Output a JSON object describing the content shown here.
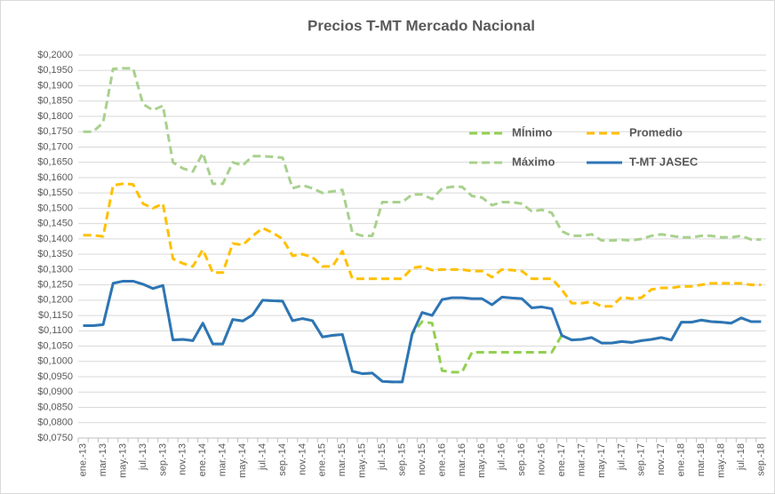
{
  "chart_data": {
    "type": "line",
    "title": "Precios T-MT Mercado Nacional",
    "categories": [
      "ene.-13",
      null,
      "mar.-13",
      null,
      "may.-13",
      null,
      "jul.-13",
      null,
      "sep.-13",
      null,
      "nov.-13",
      null,
      "ene.-14",
      null,
      "mar.-14",
      null,
      "may.-14",
      null,
      "jul.-14",
      null,
      "sep.-14",
      null,
      "nov.-14",
      null,
      "ene.-15",
      null,
      "mar.-15",
      null,
      "may.-15",
      null,
      "jul.-15",
      null,
      "sep.-15",
      null,
      "nov.-15",
      null,
      "ene.-16",
      null,
      "mar.-16",
      null,
      "may.-16",
      null,
      "jul.-16",
      null,
      "sep.-16",
      null,
      "nov.-16",
      null,
      "ene.-17",
      null,
      "mar.-17",
      null,
      "may.-17",
      null,
      "jul.-17",
      null,
      "sep.-17",
      null,
      "nov.-17",
      null,
      "ene.-18",
      null,
      "mar.-18",
      null,
      "may.-18",
      null,
      "jul.-18",
      null,
      "sep.-18"
    ],
    "series": [
      {
        "name": "MÍnimo",
        "color": "#92d050",
        "dashed": true,
        "values": [
          0.1117,
          0.1117,
          0.112,
          0.1255,
          0.1262,
          0.1262,
          0.1252,
          0.1238,
          0.1248,
          0.107,
          0.1072,
          0.1068,
          0.1125,
          0.1057,
          0.1057,
          0.1137,
          0.1132,
          0.1152,
          0.12,
          0.1198,
          0.1197,
          0.1133,
          0.114,
          0.1133,
          0.108,
          0.1085,
          0.1088,
          0.0968,
          0.096,
          0.0962,
          0.0935,
          0.0933,
          0.0933,
          0.109,
          0.113,
          0.1125,
          0.097,
          0.0965,
          0.0965,
          0.103,
          0.103,
          0.103,
          0.103,
          0.103,
          0.103,
          0.103,
          0.103,
          0.103,
          0.1085,
          0.107,
          0.1072,
          0.1078,
          0.106,
          0.106,
          0.1065,
          0.1062,
          0.1068,
          0.1072,
          0.1078,
          0.107,
          0.1128,
          0.1128,
          0.1135,
          0.113,
          0.1128,
          0.1125,
          0.1142,
          0.113,
          0.113
        ]
      },
      {
        "name": "Promedio",
        "color": "#ffc000",
        "dashed": true,
        "values": [
          0.1412,
          0.1412,
          0.1408,
          0.1575,
          0.158,
          0.1578,
          0.1515,
          0.15,
          0.1515,
          0.1335,
          0.132,
          0.131,
          0.1365,
          0.129,
          0.129,
          0.1385,
          0.138,
          0.141,
          0.1435,
          0.142,
          0.14,
          0.1345,
          0.135,
          0.134,
          0.131,
          0.131,
          0.136,
          0.127,
          0.127,
          0.127,
          0.127,
          0.127,
          0.127,
          0.1305,
          0.131,
          0.1298,
          0.13,
          0.13,
          0.13,
          0.1295,
          0.1295,
          0.1275,
          0.13,
          0.1298,
          0.1295,
          0.127,
          0.127,
          0.127,
          0.1235,
          0.119,
          0.119,
          0.1195,
          0.118,
          0.118,
          0.121,
          0.1205,
          0.1208,
          0.1235,
          0.124,
          0.124,
          0.1245,
          0.1245,
          0.125,
          0.1255,
          0.1255,
          0.1255,
          0.1255,
          0.125,
          0.125
        ]
      },
      {
        "name": "Máximo",
        "color": "#a9d18e",
        "dashed": true,
        "values": [
          0.175,
          0.175,
          0.178,
          0.1955,
          0.1957,
          0.1957,
          0.184,
          0.182,
          0.1835,
          0.165,
          0.163,
          0.162,
          0.168,
          0.158,
          0.158,
          0.165,
          0.164,
          0.167,
          0.167,
          0.1668,
          0.1665,
          0.1565,
          0.1575,
          0.1565,
          0.155,
          0.1555,
          0.156,
          0.142,
          0.141,
          0.141,
          0.152,
          0.152,
          0.152,
          0.1545,
          0.1545,
          0.153,
          0.1565,
          0.157,
          0.157,
          0.154,
          0.1535,
          0.151,
          0.152,
          0.152,
          0.1515,
          0.149,
          0.1495,
          0.1485,
          0.1425,
          0.141,
          0.141,
          0.1415,
          0.1395,
          0.1395,
          0.1397,
          0.1395,
          0.14,
          0.141,
          0.1415,
          0.141,
          0.1405,
          0.1405,
          0.141,
          0.141,
          0.1405,
          0.1405,
          0.141,
          0.1398,
          0.1398
        ]
      },
      {
        "name": "T-MT JASEC",
        "color": "#2e75b6",
        "dashed": false,
        "values": [
          0.1117,
          0.1117,
          0.112,
          0.1255,
          0.1262,
          0.1262,
          0.1252,
          0.1238,
          0.1248,
          0.107,
          0.1072,
          0.1068,
          0.1125,
          0.1057,
          0.1057,
          0.1137,
          0.1132,
          0.1152,
          0.12,
          0.1198,
          0.1197,
          0.1133,
          0.114,
          0.1133,
          0.108,
          0.1085,
          0.1088,
          0.0968,
          0.096,
          0.0962,
          0.0935,
          0.0933,
          0.0933,
          0.109,
          0.116,
          0.115,
          0.1202,
          0.1208,
          0.1208,
          0.1205,
          0.1205,
          0.1185,
          0.121,
          0.1207,
          0.1205,
          0.1175,
          0.1178,
          0.1172,
          0.1085,
          0.107,
          0.1072,
          0.1078,
          0.106,
          0.106,
          0.1065,
          0.1062,
          0.1068,
          0.1072,
          0.1078,
          0.107,
          0.1128,
          0.1128,
          0.1135,
          0.113,
          0.1128,
          0.1125,
          0.1142,
          0.113,
          0.113
        ]
      }
    ],
    "ylim": [
      0.075,
      0.2
    ],
    "yticks": [
      {
        "value": 0.075,
        "label": "$0,0750"
      },
      {
        "value": 0.08,
        "label": "$0,0800"
      },
      {
        "value": 0.085,
        "label": "$0,0850"
      },
      {
        "value": 0.09,
        "label": "$0,0900"
      },
      {
        "value": 0.095,
        "label": "$0,0950"
      },
      {
        "value": 0.1,
        "label": "$0,1000"
      },
      {
        "value": 0.105,
        "label": "$0,1050"
      },
      {
        "value": 0.11,
        "label": "$0,1100"
      },
      {
        "value": 0.115,
        "label": "$0,1150"
      },
      {
        "value": 0.12,
        "label": "$0,1200"
      },
      {
        "value": 0.125,
        "label": "$0,1250"
      },
      {
        "value": 0.13,
        "label": "$0,1300"
      },
      {
        "value": 0.135,
        "label": "$0,1350"
      },
      {
        "value": 0.14,
        "label": "$0,1400"
      },
      {
        "value": 0.145,
        "label": "$0,1450"
      },
      {
        "value": 0.15,
        "label": "$0,1500"
      },
      {
        "value": 0.155,
        "label": "$0,1550"
      },
      {
        "value": 0.16,
        "label": "$0,1600"
      },
      {
        "value": 0.165,
        "label": "$0,1650"
      },
      {
        "value": 0.17,
        "label": "$0,1700"
      },
      {
        "value": 0.175,
        "label": "$0,1750"
      },
      {
        "value": 0.18,
        "label": "$0,1800"
      },
      {
        "value": 0.185,
        "label": "$0,1850"
      },
      {
        "value": 0.19,
        "label": "$0,1900"
      },
      {
        "value": 0.195,
        "label": "$0,1950"
      },
      {
        "value": 0.2,
        "label": "$0,2000"
      }
    ],
    "grid": true,
    "legend_position": "upper right"
  }
}
